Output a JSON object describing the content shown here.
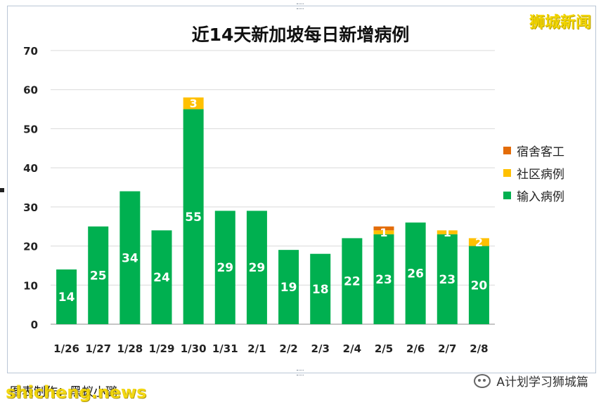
{
  "watermark_top": "狮城新闻",
  "footer": {
    "note": "图表制作：黑蚁小璐",
    "site": "shicheng.news",
    "brand": "A计划学习狮城篇"
  },
  "colors": {
    "dorm": "#e36c09",
    "community": "#ffc000",
    "imported": "#00b050"
  },
  "chart_data": {
    "type": "bar",
    "stacked": true,
    "title": "近14天新加坡每日新增病例",
    "categories": [
      "1/26",
      "1/27",
      "1/28",
      "1/29",
      "1/30",
      "1/31",
      "2/1",
      "2/2",
      "2/3",
      "2/4",
      "2/5",
      "2/6",
      "2/7",
      "2/8"
    ],
    "series": [
      {
        "name": "输入病例",
        "color": "#00b050",
        "values": [
          14,
          25,
          34,
          24,
          55,
          29,
          29,
          19,
          18,
          22,
          23,
          26,
          23,
          20
        ]
      },
      {
        "name": "社区病例",
        "color": "#ffc000",
        "values": [
          0,
          0,
          0,
          0,
          3,
          0,
          0,
          0,
          0,
          0,
          1,
          0,
          1,
          2
        ]
      },
      {
        "name": "宿舍客工",
        "color": "#e36c09",
        "values": [
          0,
          0,
          0,
          0,
          0,
          0,
          0,
          0,
          0,
          0,
          1,
          0,
          0,
          0
        ]
      }
    ],
    "legend_order": [
      "宿舍客工",
      "社区病例",
      "输入病例"
    ],
    "legend_position": "right",
    "ylim": [
      0,
      70
    ],
    "yticks": [
      0,
      10,
      20,
      30,
      40,
      50,
      60,
      70
    ],
    "grid": true,
    "xlabel": "",
    "ylabel": ""
  }
}
